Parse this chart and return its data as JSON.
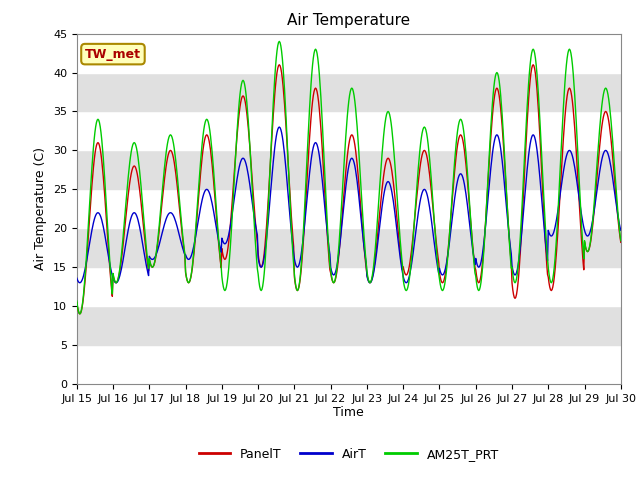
{
  "title": "Air Temperature",
  "ylabel": "Air Temperature (C)",
  "xlabel": "Time",
  "ylim": [
    0,
    45
  ],
  "yticks": [
    0,
    5,
    10,
    15,
    20,
    25,
    30,
    35,
    40,
    45
  ],
  "n_days": 15,
  "x_tick_labels": [
    "Jul 15",
    "Jul 16",
    "Jul 17",
    "Jul 18",
    "Jul 19",
    "Jul 20",
    "Jul 21",
    "Jul 22",
    "Jul 23",
    "Jul 24",
    "Jul 25",
    "Jul 26",
    "Jul 27",
    "Jul 28",
    "Jul 29",
    "Jul 30"
  ],
  "label_box_text": "TW_met",
  "legend_labels": [
    "PanelT",
    "AirT",
    "AM25T_PRT"
  ],
  "line_colors": [
    "#cc0000",
    "#0000cc",
    "#00cc00"
  ],
  "bg_band_color": "#e0e0e0",
  "plot_bg_color": "#ebebeb",
  "title_fontsize": 11,
  "axis_fontsize": 9,
  "tick_fontsize": 8,
  "legend_fontsize": 9,
  "daily_peaks_panel": [
    31,
    28,
    30,
    32,
    37,
    41,
    38,
    32,
    29,
    30,
    32,
    38,
    41,
    38,
    35
  ],
  "daily_peaks_air": [
    22,
    22,
    22,
    25,
    29,
    33,
    31,
    29,
    26,
    25,
    27,
    32,
    32,
    30,
    30
  ],
  "daily_peaks_am25": [
    34,
    31,
    32,
    34,
    39,
    44,
    43,
    38,
    35,
    33,
    34,
    40,
    43,
    43,
    38
  ],
  "daily_mins_panel": [
    9,
    13,
    15,
    13,
    16,
    15,
    12,
    13,
    13,
    14,
    13,
    13,
    11,
    12,
    17
  ],
  "daily_mins_air": [
    13,
    13,
    16,
    16,
    18,
    15,
    15,
    14,
    13,
    13,
    14,
    15,
    14,
    19,
    19
  ],
  "daily_mins_am25": [
    9,
    13,
    15,
    13,
    12,
    12,
    12,
    13,
    13,
    12,
    12,
    12,
    13,
    13,
    17
  ]
}
